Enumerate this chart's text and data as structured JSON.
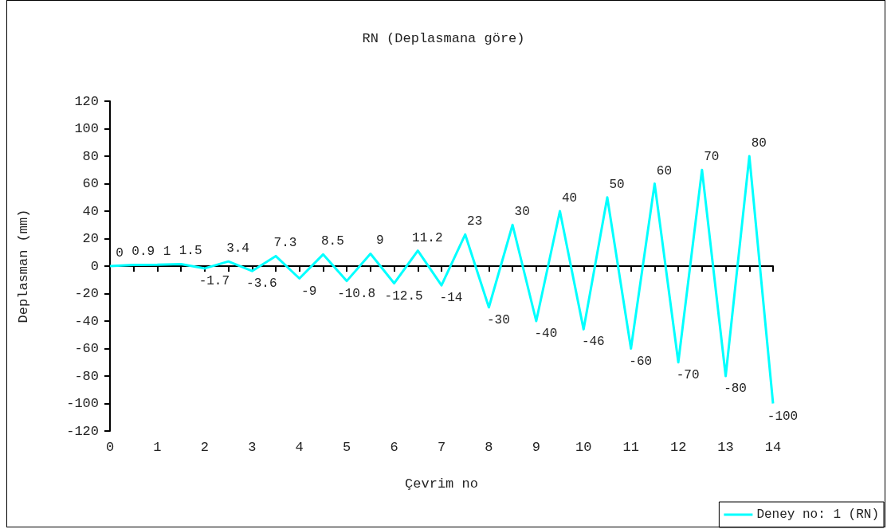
{
  "chart_data": {
    "type": "line",
    "title": "RN (Deplasmana göre)",
    "xlabel": "Çevrim no",
    "ylabel": "Deplasman (mm)",
    "x": [
      0,
      0.5,
      1,
      1.5,
      2,
      2.5,
      3,
      3.5,
      4,
      4.5,
      5,
      5.5,
      6,
      6.5,
      7,
      7.5,
      8,
      8.5,
      9,
      9.5,
      10,
      10.5,
      11,
      11.5,
      12,
      12.5,
      13,
      13.5,
      14
    ],
    "series": [
      {
        "name": "Deney no: 1 (RN)",
        "color": "#00ffff",
        "values": [
          0,
          0.9,
          1,
          1.5,
          -1.7,
          3.4,
          -3.6,
          7.3,
          -9,
          8.5,
          -10.8,
          9,
          -12.5,
          11.2,
          -14,
          23,
          -30,
          30,
          -40,
          40,
          -46,
          50,
          -60,
          60,
          -70,
          70,
          -80,
          80,
          -100
        ]
      }
    ],
    "xlim": [
      0,
      14
    ],
    "xticks": [
      0,
      {
        "value": 0.5,
        "label": null
      },
      1,
      {
        "value": 1.5,
        "label": null
      },
      2,
      {
        "value": 2.5,
        "label": null
      },
      3,
      {
        "value": 3.5,
        "label": null
      },
      4,
      {
        "value": 4.5,
        "label": null
      },
      5,
      {
        "value": 5.5,
        "label": null
      },
      6,
      {
        "value": 6.5,
        "label": null
      },
      7,
      {
        "value": 7.5,
        "label": null
      },
      8,
      {
        "value": 8.5,
        "label": null
      },
      9,
      {
        "value": 9.5,
        "label": null
      },
      10,
      {
        "value": 10.5,
        "label": null
      },
      11,
      {
        "value": 11.5,
        "label": null
      },
      12,
      {
        "value": 12.5,
        "label": null
      },
      13,
      {
        "value": 13.5,
        "label": null
      },
      14
    ],
    "ylim": [
      -120,
      120
    ],
    "yticks": [
      -120,
      -100,
      -80,
      -60,
      -40,
      -20,
      0,
      20,
      40,
      60,
      80,
      100,
      120
    ],
    "data_labels": true,
    "legend": "bottom right",
    "marker": "none",
    "line_style": "solid"
  }
}
